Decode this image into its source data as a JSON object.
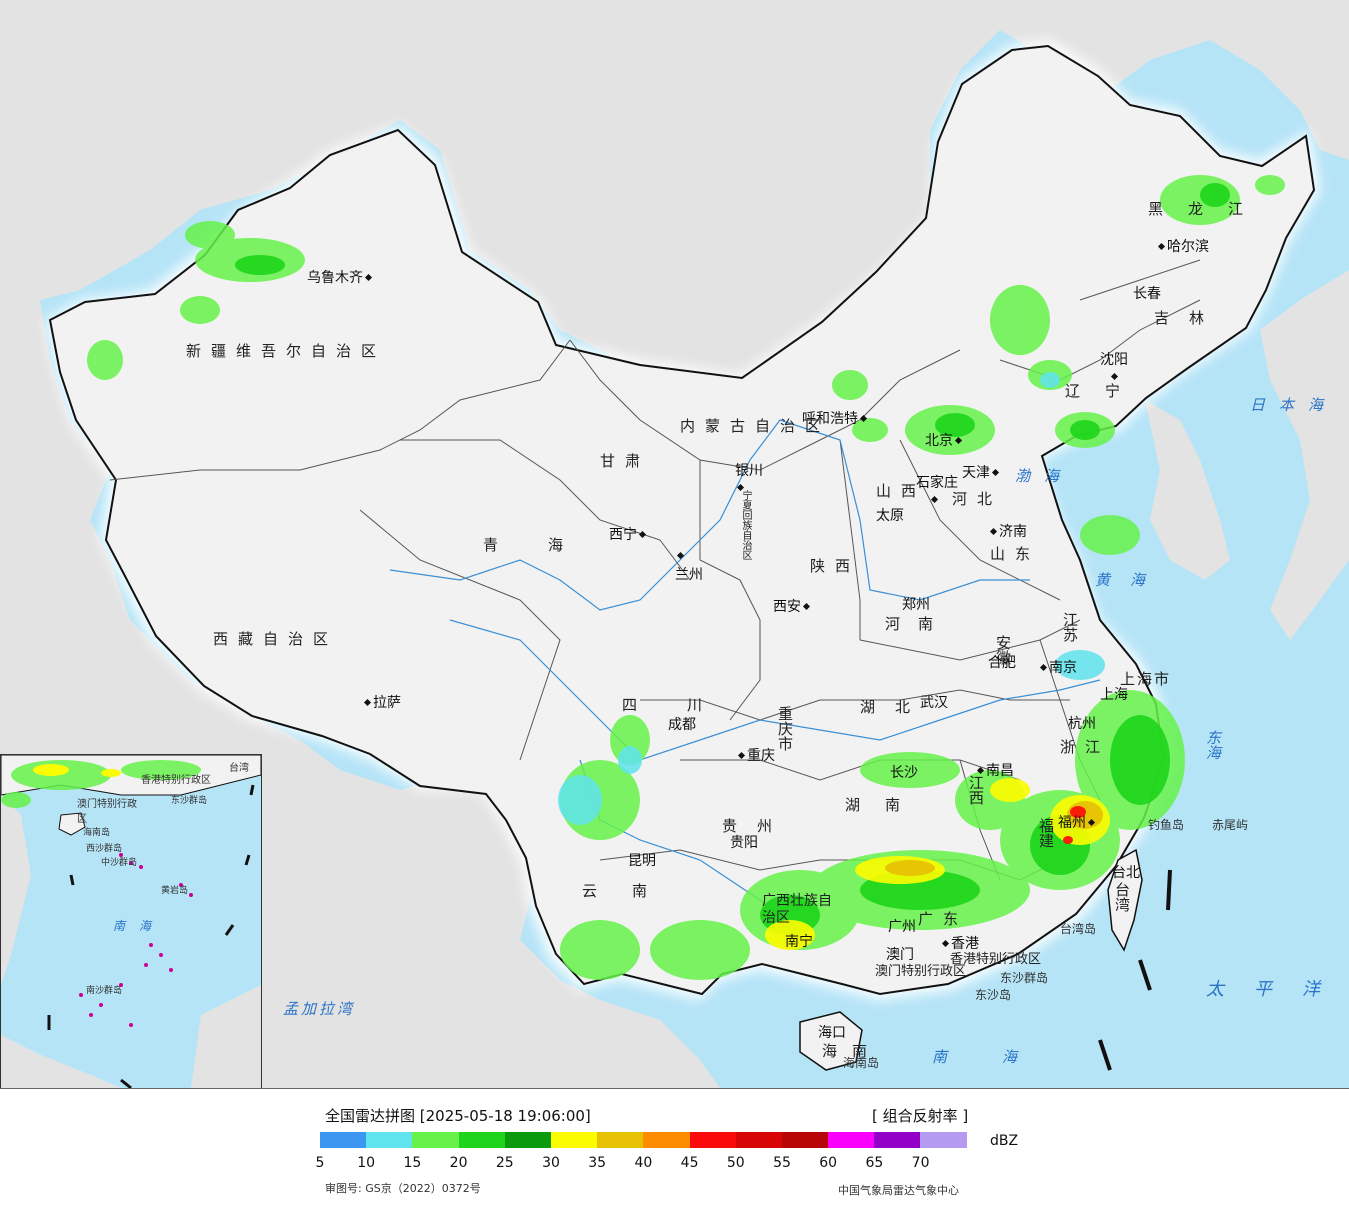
{
  "legend": {
    "title": "全国雷达拼图 [2025-05-18 19:06:00]",
    "product": "[ 组合反射率 ]",
    "unit": "dBZ",
    "ticks": [
      "5",
      "10",
      "15",
      "20",
      "25",
      "30",
      "35",
      "40",
      "45",
      "50",
      "55",
      "60",
      "65",
      "70"
    ],
    "colors": [
      "#3d97f1",
      "#5fe3ec",
      "#66f24a",
      "#1ed51b",
      "#0a9a0b",
      "#fcfc00",
      "#e7c204",
      "#fd8c00",
      "#fb0a0a",
      "#d70506",
      "#b80607",
      "#fa00fc",
      "#9300c7",
      "#b59af1"
    ],
    "approval": "审图号: GS京（2022）0372号",
    "source": "中国气象局雷达气象中心"
  },
  "cities": [
    {
      "name": "乌鲁木齐",
      "side": "left"
    },
    {
      "name": "拉萨",
      "side": "right"
    },
    {
      "name": "西宁",
      "side": "left"
    },
    {
      "name": "兰州",
      "side": "left"
    },
    {
      "name": "银川",
      "side": "left"
    },
    {
      "name": "呼和浩特",
      "side": "left"
    },
    {
      "name": "北京",
      "side": "left"
    },
    {
      "name": "天津",
      "side": "left"
    },
    {
      "name": "石家庄",
      "side": "left"
    },
    {
      "name": "太原",
      "side": "left"
    },
    {
      "name": "济南",
      "side": "right"
    },
    {
      "name": "沈阳",
      "side": "left"
    },
    {
      "name": "长春",
      "side": "left"
    },
    {
      "name": "哈尔滨",
      "side": "right"
    },
    {
      "name": "郑州",
      "side": "left"
    },
    {
      "name": "西安",
      "side": "left"
    },
    {
      "name": "合肥",
      "side": "left"
    },
    {
      "name": "南京",
      "side": "right"
    },
    {
      "name": "上海",
      "side": "left"
    },
    {
      "name": "杭州",
      "side": "left"
    },
    {
      "name": "武汉",
      "side": "left"
    },
    {
      "name": "成都",
      "side": "left"
    },
    {
      "name": "重庆",
      "side": "right"
    },
    {
      "name": "长沙",
      "side": "left"
    },
    {
      "name": "南昌",
      "side": "right"
    },
    {
      "name": "福州",
      "side": "left"
    },
    {
      "name": "贵阳",
      "side": "left"
    },
    {
      "name": "昆明",
      "side": "left"
    },
    {
      "name": "南宁",
      "side": "left"
    },
    {
      "name": "广州",
      "side": "left"
    },
    {
      "name": "香港",
      "side": "right"
    },
    {
      "name": "澳门",
      "side": "left"
    },
    {
      "name": "海口",
      "side": "left"
    },
    {
      "name": "台北",
      "side": "left"
    }
  ],
  "provinces": [
    "新疆维吾尔自治区",
    "西藏自治区",
    "青海",
    "甘肃",
    "内蒙古自治区",
    "黑龙江",
    "吉林",
    "辽宁",
    "河北",
    "山西",
    "山东",
    "河南",
    "陕西",
    "宁夏回族自治区",
    "四川",
    "重庆市",
    "湖北",
    "安徽",
    "江苏",
    "上海市",
    "浙江",
    "江西",
    "湖南",
    "贵州",
    "云南",
    "广西壮族自治区",
    "广东",
    "福建",
    "台湾",
    "海南",
    "香港特别行政区",
    "澳门特别行政区"
  ],
  "seas": [
    "日本海",
    "渤海",
    "黄海",
    "东海",
    "南海",
    "太平洋",
    "孟加拉湾"
  ],
  "islands": [
    "钓鱼岛",
    "赤尾屿",
    "台湾岛",
    "海南岛",
    "东沙群岛",
    "东沙岛"
  ],
  "inset": {
    "labels": [
      "香港特别行政区",
      "澳门特别行政区",
      "东沙群岛",
      "海南岛",
      "西沙群岛",
      "中沙群岛",
      "黄岩岛",
      "南海",
      "南沙群岛",
      "台湾"
    ]
  }
}
